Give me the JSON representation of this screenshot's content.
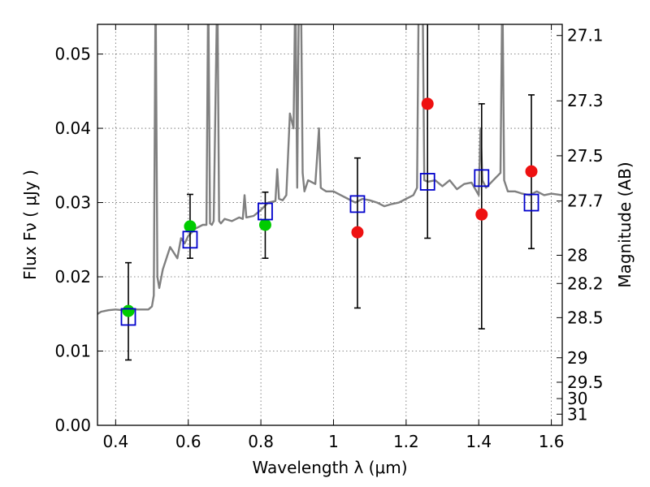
{
  "chart_data": {
    "type": "scatter",
    "xlabel": "Wavelength  λ (μm)",
    "ylabel": "Flux  Fν  ( μJy )",
    "ylabel_right": "Magnitude (AB)",
    "xlim": [
      0.35,
      1.63
    ],
    "ylim": [
      0.0,
      0.054
    ],
    "grid": true,
    "x_ticks": [
      0.4,
      0.6,
      0.8,
      1.0,
      1.2,
      1.4,
      1.6
    ],
    "x_tick_labels": [
      "0.4",
      "0.6",
      "0.8",
      "1",
      "1.2",
      "1.4",
      "1.6"
    ],
    "y_ticks": [
      0.0,
      0.01,
      0.02,
      0.03,
      0.04,
      0.05
    ],
    "y_tick_labels": [
      "0.00",
      "0.01",
      "0.02",
      "0.03",
      "0.04",
      "0.05"
    ],
    "right_ticks": [
      {
        "label": "27.1",
        "flux": 0.0525
      },
      {
        "label": "27.3",
        "flux": 0.0437
      },
      {
        "label": "27.5",
        "flux": 0.0363
      },
      {
        "label": "27.7",
        "flux": 0.0302
      },
      {
        "label": "28",
        "flux": 0.0229
      },
      {
        "label": "28.2",
        "flux": 0.0191
      },
      {
        "label": "28.5",
        "flux": 0.0145
      },
      {
        "label": "29",
        "flux": 0.0091
      },
      {
        "label": "29.5",
        "flux": 0.0058
      },
      {
        "label": "30",
        "flux": 0.0036
      },
      {
        "label": "31",
        "flux": 0.0015
      }
    ],
    "series": [
      {
        "kind": "line",
        "color": "#808080",
        "x": [
          0.35,
          0.36,
          0.38,
          0.4,
          0.42,
          0.44,
          0.46,
          0.48,
          0.49,
          0.5,
          0.505,
          0.51,
          0.515,
          0.52,
          0.53,
          0.55,
          0.57,
          0.58,
          0.59,
          0.6,
          0.62,
          0.64,
          0.65,
          0.655,
          0.66,
          0.665,
          0.67,
          0.68,
          0.685,
          0.69,
          0.7,
          0.72,
          0.74,
          0.75,
          0.755,
          0.76,
          0.78,
          0.8,
          0.82,
          0.84,
          0.845,
          0.85,
          0.86,
          0.87,
          0.88,
          0.89,
          0.895,
          0.9,
          0.905,
          0.91,
          0.915,
          0.92,
          0.93,
          0.95,
          0.96,
          0.965,
          0.97,
          0.98,
          1.0,
          1.02,
          1.04,
          1.06,
          1.08,
          1.1,
          1.12,
          1.14,
          1.16,
          1.18,
          1.2,
          1.22,
          1.23,
          1.235,
          1.24,
          1.245,
          1.25,
          1.26,
          1.28,
          1.3,
          1.32,
          1.34,
          1.36,
          1.38,
          1.4,
          1.405,
          1.41,
          1.42,
          1.44,
          1.46,
          1.465,
          1.47,
          1.48,
          1.5,
          1.52,
          1.54,
          1.56,
          1.58,
          1.6,
          1.63
        ],
        "y": [
          0.015,
          0.0153,
          0.0155,
          0.0156,
          0.0155,
          0.0157,
          0.0156,
          0.0156,
          0.0156,
          0.016,
          0.0175,
          0.06,
          0.02,
          0.0185,
          0.021,
          0.024,
          0.0225,
          0.0252,
          0.0245,
          0.0255,
          0.0265,
          0.027,
          0.027,
          0.06,
          0.0272,
          0.027,
          0.0275,
          0.06,
          0.0275,
          0.0272,
          0.0278,
          0.0275,
          0.028,
          0.0278,
          0.031,
          0.028,
          0.0282,
          0.029,
          0.03,
          0.0302,
          0.0345,
          0.0305,
          0.0303,
          0.031,
          0.042,
          0.04,
          0.06,
          0.032,
          0.06,
          0.06,
          0.034,
          0.0315,
          0.033,
          0.0325,
          0.04,
          0.032,
          0.0318,
          0.0315,
          0.0315,
          0.031,
          0.0305,
          0.03,
          0.0305,
          0.0303,
          0.03,
          0.0295,
          0.0298,
          0.03,
          0.0305,
          0.031,
          0.032,
          0.06,
          0.06,
          0.06,
          0.033,
          0.0328,
          0.033,
          0.0322,
          0.033,
          0.0318,
          0.0325,
          0.0327,
          0.031,
          0.04,
          0.033,
          0.032,
          0.033,
          0.034,
          0.06,
          0.033,
          0.0315,
          0.0315,
          0.0312,
          0.031,
          0.0315,
          0.031,
          0.0312,
          0.031
        ]
      },
      {
        "kind": "errorbar",
        "color": "#000000",
        "x": [
          0.435,
          0.605,
          0.812,
          1.066,
          1.259,
          1.408,
          1.545
        ],
        "y": [
          0.0154,
          0.0268,
          0.027,
          0.026,
          0.0433,
          0.0284,
          0.0342
        ],
        "ylow": [
          0.0088,
          0.0225,
          0.0225,
          0.0158,
          0.0252,
          0.013,
          0.0238
        ],
        "yhigh": [
          0.0219,
          0.0311,
          0.0314,
          0.036,
          0.056,
          0.0433,
          0.0445
        ]
      },
      {
        "kind": "marker-circle",
        "color": "#00cc00",
        "x": [
          0.435,
          0.605,
          0.812
        ],
        "y": [
          0.0154,
          0.0268,
          0.027
        ]
      },
      {
        "kind": "marker-circle",
        "color": "#ee1111",
        "x": [
          1.066,
          1.259,
          1.408,
          1.545
        ],
        "y": [
          0.026,
          0.0433,
          0.0284,
          0.0342
        ]
      },
      {
        "kind": "marker-square",
        "color": "#0000cc",
        "x": [
          0.435,
          0.605,
          0.812,
          1.066,
          1.259,
          1.408,
          1.545
        ],
        "y": [
          0.0146,
          0.025,
          0.0288,
          0.0298,
          0.0328,
          0.0333,
          0.03
        ]
      }
    ]
  }
}
